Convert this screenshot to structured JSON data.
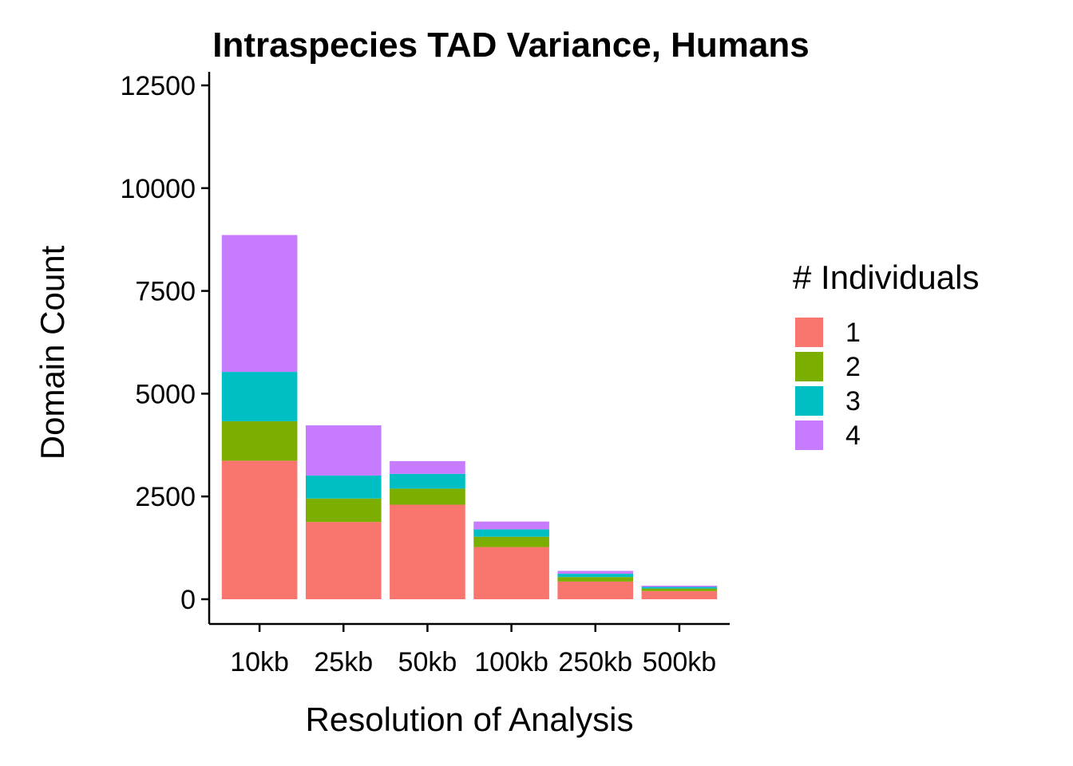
{
  "chart_data": {
    "type": "bar",
    "stacked": true,
    "title": "Intraspecies TAD Variance, Humans",
    "xlabel": "Resolution of Analysis",
    "ylabel": "Domain Count",
    "categories": [
      "10kb",
      "25kb",
      "50kb",
      "100kb",
      "250kb",
      "500kb"
    ],
    "ylim": [
      -600,
      12500
    ],
    "yticks": [
      0,
      2500,
      5000,
      7500,
      10000,
      12500
    ],
    "grid": false,
    "legend": {
      "title": "# Individuals",
      "placement": "right"
    },
    "series": [
      {
        "name": "1",
        "color": "#F8766D",
        "values": [
          3370,
          1880,
          2300,
          1270,
          430,
          200
        ]
      },
      {
        "name": "2",
        "color": "#7CAE00",
        "values": [
          960,
          570,
          390,
          250,
          110,
          60
        ]
      },
      {
        "name": "3",
        "color": "#00BFC4",
        "values": [
          1200,
          560,
          360,
          180,
          80,
          40
        ]
      },
      {
        "name": "4",
        "color": "#C77CFF",
        "values": [
          3330,
          1220,
          310,
          190,
          70,
          30
        ]
      }
    ]
  }
}
